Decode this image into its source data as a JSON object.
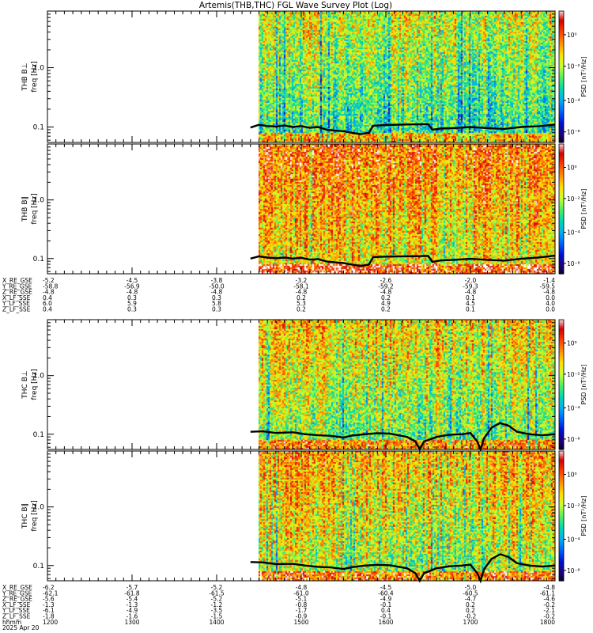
{
  "title": "Artemis(THB,THC) FGL Wave Survey Plot (Log)",
  "colorbar": {
    "label": "PSD [nT²/Hz]",
    "ticks": [
      "10⁰",
      "10⁻²",
      "10⁻⁴",
      "10⁻⁶"
    ],
    "colors": [
      "#ffffff",
      "#d00000",
      "#ff4000",
      "#ff9000",
      "#ffe000",
      "#c8ff30",
      "#50f060",
      "#00d8b0",
      "#00b0f0",
      "#0060ff",
      "#0010d0",
      "#20007a",
      "#000000"
    ]
  },
  "chart_data": [
    {
      "type": "heatmap",
      "panel": "THB B⊥",
      "ylabel_probe": "THB B⊥",
      "ylabel": "freq [Hz]",
      "yscale": "log",
      "ylim": [
        0.055,
        9.0
      ],
      "y_ticks": [
        "1.0",
        "0.1"
      ],
      "x_data_start_hhmm": "1440",
      "level": 0.55,
      "seed": 11,
      "trace": [
        [
          1440,
          0.098
        ],
        [
          1450,
          0.109
        ],
        [
          1460,
          0.104
        ],
        [
          1470,
          0.102
        ],
        [
          1480,
          0.106
        ],
        [
          1490,
          0.1
        ],
        [
          1500,
          0.104
        ],
        [
          1510,
          0.097
        ],
        [
          1520,
          0.1
        ],
        [
          1530,
          0.09
        ],
        [
          1540,
          0.087
        ],
        [
          1550,
          0.085
        ],
        [
          1560,
          0.08
        ],
        [
          1570,
          0.076
        ],
        [
          1580,
          0.08
        ],
        [
          1585,
          0.105
        ],
        [
          1600,
          0.108
        ],
        [
          1620,
          0.11
        ],
        [
          1640,
          0.111
        ],
        [
          1650,
          0.112
        ],
        [
          1655,
          0.09
        ],
        [
          1665,
          0.094
        ],
        [
          1680,
          0.096
        ],
        [
          1700,
          0.1
        ],
        [
          1720,
          0.096
        ],
        [
          1740,
          0.093
        ],
        [
          1760,
          0.1
        ],
        [
          1780,
          0.103
        ],
        [
          1800,
          0.11
        ]
      ]
    },
    {
      "type": "heatmap",
      "panel": "THB B∥",
      "ylabel_probe": "THB B∥",
      "ylabel": "freq [Hz]",
      "yscale": "log",
      "ylim": [
        0.055,
        9.0
      ],
      "y_ticks": [
        "1.0",
        "0.1"
      ],
      "x_data_start_hhmm": "1440",
      "level": 0.38,
      "seed": 23,
      "trace": [
        [
          1440,
          0.1
        ],
        [
          1450,
          0.109
        ],
        [
          1460,
          0.104
        ],
        [
          1470,
          0.101
        ],
        [
          1480,
          0.104
        ],
        [
          1490,
          0.1
        ],
        [
          1500,
          0.103
        ],
        [
          1510,
          0.096
        ],
        [
          1520,
          0.098
        ],
        [
          1530,
          0.089
        ],
        [
          1540,
          0.086
        ],
        [
          1550,
          0.084
        ],
        [
          1560,
          0.079
        ],
        [
          1570,
          0.075
        ],
        [
          1580,
          0.079
        ],
        [
          1585,
          0.106
        ],
        [
          1600,
          0.108
        ],
        [
          1620,
          0.109
        ],
        [
          1640,
          0.11
        ],
        [
          1650,
          0.111
        ],
        [
          1655,
          0.088
        ],
        [
          1665,
          0.093
        ],
        [
          1680,
          0.095
        ],
        [
          1700,
          0.099
        ],
        [
          1720,
          0.095
        ],
        [
          1740,
          0.092
        ],
        [
          1760,
          0.099
        ],
        [
          1780,
          0.104
        ],
        [
          1800,
          0.112
        ]
      ]
    },
    {
      "type": "heatmap",
      "panel": "THC B⊥",
      "ylabel_probe": "THC B⊥",
      "ylabel": "freq [Hz]",
      "yscale": "log",
      "ylim": [
        0.055,
        9.0
      ],
      "y_ticks": [
        "1.0",
        "0.1"
      ],
      "x_data_start_hhmm": "1440",
      "level": 0.5,
      "seed": 37,
      "trace": [
        [
          1440,
          0.11
        ],
        [
          1455,
          0.112
        ],
        [
          1470,
          0.105
        ],
        [
          1490,
          0.108
        ],
        [
          1505,
          0.1
        ],
        [
          1520,
          0.096
        ],
        [
          1535,
          0.094
        ],
        [
          1550,
          0.088
        ],
        [
          1560,
          0.095
        ],
        [
          1575,
          0.1
        ],
        [
          1590,
          0.104
        ],
        [
          1605,
          0.102
        ],
        [
          1625,
          0.09
        ],
        [
          1635,
          0.075
        ],
        [
          1640,
          0.055
        ],
        [
          1645,
          0.075
        ],
        [
          1660,
          0.09
        ],
        [
          1675,
          0.098
        ],
        [
          1690,
          0.1
        ],
        [
          1700,
          0.105
        ],
        [
          1708,
          0.075
        ],
        [
          1712,
          0.055
        ],
        [
          1716,
          0.085
        ],
        [
          1725,
          0.13
        ],
        [
          1735,
          0.155
        ],
        [
          1745,
          0.14
        ],
        [
          1755,
          0.11
        ],
        [
          1770,
          0.1
        ],
        [
          1785,
          0.096
        ],
        [
          1800,
          0.1
        ]
      ]
    },
    {
      "type": "heatmap",
      "panel": "THC B∥",
      "ylabel_probe": "THC B∥",
      "ylabel": "freq [Hz]",
      "yscale": "log",
      "ylim": [
        0.055,
        9.0
      ],
      "y_ticks": [
        "1.0",
        "0.1"
      ],
      "x_data_start_hhmm": "1440",
      "level": 0.45,
      "seed": 53,
      "trace": [
        [
          1440,
          0.115
        ],
        [
          1455,
          0.113
        ],
        [
          1470,
          0.106
        ],
        [
          1490,
          0.107
        ],
        [
          1505,
          0.1
        ],
        [
          1520,
          0.095
        ],
        [
          1535,
          0.093
        ],
        [
          1550,
          0.087
        ],
        [
          1560,
          0.094
        ],
        [
          1575,
          0.1
        ],
        [
          1590,
          0.103
        ],
        [
          1605,
          0.101
        ],
        [
          1625,
          0.09
        ],
        [
          1635,
          0.074
        ],
        [
          1640,
          0.055
        ],
        [
          1645,
          0.074
        ],
        [
          1660,
          0.09
        ],
        [
          1675,
          0.097
        ],
        [
          1690,
          0.1
        ],
        [
          1700,
          0.104
        ],
        [
          1708,
          0.074
        ],
        [
          1712,
          0.055
        ],
        [
          1716,
          0.086
        ],
        [
          1725,
          0.13
        ],
        [
          1735,
          0.156
        ],
        [
          1745,
          0.14
        ],
        [
          1755,
          0.11
        ],
        [
          1770,
          0.1
        ],
        [
          1785,
          0.096
        ],
        [
          1800,
          0.1
        ]
      ]
    }
  ],
  "ephemeris": {
    "thb": {
      "rows": [
        {
          "label": "X_RE_GSE",
          "values": [
            "-5.2",
            "-4.5",
            "-3.8",
            "-3.2",
            "-2.6",
            "-2.0",
            "-1.4"
          ]
        },
        {
          "label": "Y_RE_GSE",
          "values": [
            "-58.8",
            "-56.9",
            "-50.0",
            "-58.1",
            "-59.2",
            "-59.3",
            "-59.5"
          ]
        },
        {
          "label": "Z_RE_GSE",
          "values": [
            "-4.8",
            "-4.8",
            "-4.8",
            "-4.8",
            "-4.8",
            "-4.8",
            "-4.8"
          ]
        },
        {
          "label": "X_LF_SSE",
          "values": [
            "0.4",
            "0.3",
            "0.3",
            "0.2",
            "0.2",
            "0.1",
            "0.0"
          ]
        },
        {
          "label": "Y_LF_SSE",
          "values": [
            "6.0",
            "5.9",
            "5.8",
            "5.3",
            "4.9",
            "4.5",
            "4.0"
          ]
        },
        {
          "label": "Z_LF_SSE",
          "values": [
            "0.4",
            "0.3",
            "0.3",
            "0.2",
            "0.2",
            "0.1",
            "0.0"
          ]
        }
      ]
    },
    "thc": {
      "rows": [
        {
          "label": "X_RE_GSE",
          "values": [
            "-6.2",
            "-5.7",
            "-5.2",
            "-4.8",
            "-4.5",
            "-5.0",
            "-4.8"
          ]
        },
        {
          "label": "Y_RE_GSE",
          "values": [
            "-62.1",
            "-61.8",
            "-61.5",
            "-61.0",
            "-60.4",
            "-60.5",
            "-61.1"
          ]
        },
        {
          "label": "Z_RE_GSE",
          "values": [
            "-5.6",
            "-5.4",
            "-5.2",
            "-5.1",
            "-4.9",
            "-4.7",
            "-4.6"
          ]
        },
        {
          "label": "X_LF_SSE",
          "values": [
            "-1.3",
            "-1.3",
            "-1.2",
            "-0.8",
            "-0.1",
            "0.2",
            "-0.2"
          ]
        },
        {
          "label": "Y_LF_SSE",
          "values": [
            "-6.1",
            "-4.9",
            "-3.5",
            "-1.7",
            "0.4",
            "0.2",
            "-2.1"
          ]
        },
        {
          "label": "Z_LF_SSE",
          "values": [
            "-1.8",
            "-1.6",
            "-1.5",
            "-0.9",
            "-0.1",
            "-0.2",
            "-0.2"
          ]
        },
        {
          "label": "hhmm",
          "values": [
            "1200",
            "1300",
            "1400",
            "1500",
            "1600",
            "1700",
            "1800"
          ]
        }
      ],
      "date": "2025 Apr 20"
    }
  }
}
